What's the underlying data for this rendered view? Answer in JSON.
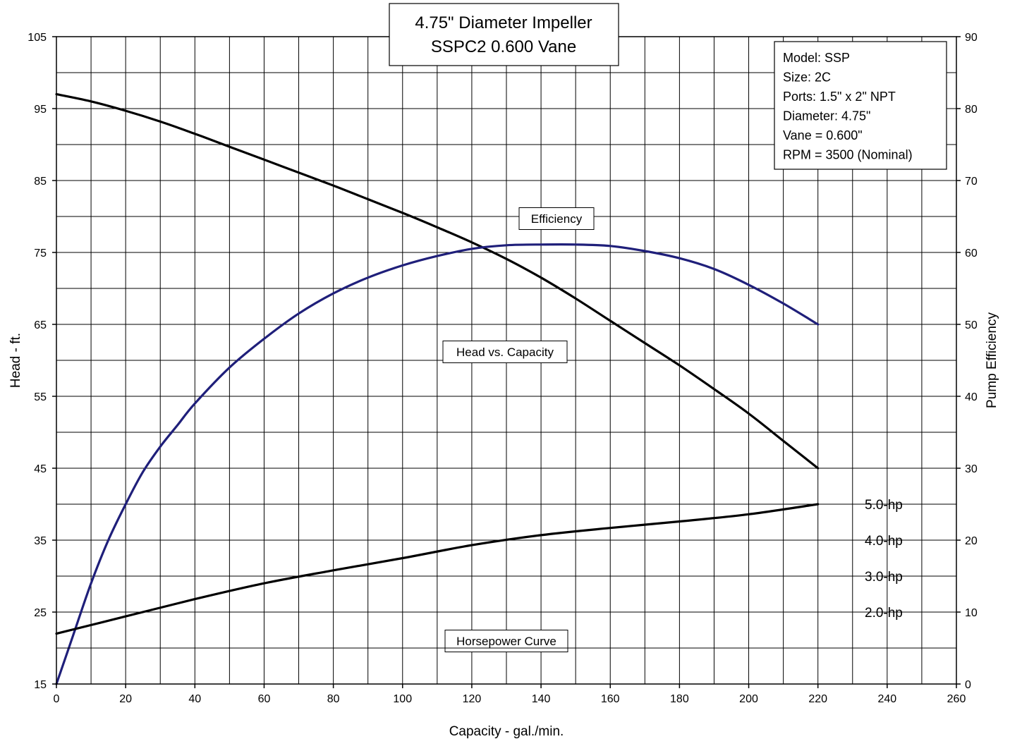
{
  "chart_data": {
    "type": "line",
    "title_lines": [
      "4.75\" Diameter Impeller",
      "SSPC2   0.600 Vane"
    ],
    "xlabel": "Capacity - gal./min.",
    "ylabel_left": "Head - ft.",
    "ylabel_right": "Pump Efficiency",
    "xlim": [
      0,
      260
    ],
    "ylim_left": [
      15,
      105
    ],
    "ylim_right": [
      0,
      90
    ],
    "x_ticks": [
      0,
      20,
      40,
      60,
      80,
      100,
      120,
      140,
      160,
      180,
      200,
      220,
      240,
      260
    ],
    "y_ticks_left": [
      15,
      25,
      35,
      45,
      55,
      65,
      75,
      85,
      95,
      105
    ],
    "y_ticks_right": [
      0,
      10,
      20,
      30,
      40,
      50,
      60,
      70,
      80,
      90
    ],
    "grid": true,
    "info_box": [
      "Model: SSP",
      "Size: 2C",
      "Ports: 1.5\" x 2\" NPT",
      "Diameter:  4.75\"",
      "Vane = 0.600\"",
      "RPM = 3500 (Nominal)"
    ],
    "annotations": {
      "efficiency": "Efficiency",
      "head": "Head vs. Capacity",
      "horsepower": "Horsepower Curve"
    },
    "hp_labels": [
      {
        "label": "5.0-hp",
        "head": 40
      },
      {
        "label": "4.0-hp",
        "head": 35
      },
      {
        "label": "3.0-hp",
        "head": 30
      },
      {
        "label": "2.0-hp",
        "head": 25
      }
    ],
    "series": [
      {
        "key": "head",
        "axis": "left",
        "color": "#000000",
        "x": [
          0,
          10,
          20,
          30,
          40,
          50,
          60,
          70,
          80,
          90,
          100,
          110,
          120,
          130,
          140,
          150,
          160,
          170,
          180,
          190,
          200,
          210,
          220
        ],
        "y": [
          97,
          96,
          94.7,
          93.2,
          91.5,
          89.7,
          87.9,
          86.1,
          84.3,
          82.4,
          80.5,
          78.5,
          76.4,
          74.1,
          71.5,
          68.6,
          65.5,
          62.4,
          59.3,
          56,
          52.6,
          48.8,
          45
        ]
      },
      {
        "key": "efficiency",
        "axis": "right",
        "color": "#1f1f7a",
        "x": [
          0,
          5,
          10,
          15,
          20,
          25,
          30,
          35,
          40,
          50,
          60,
          70,
          80,
          90,
          100,
          110,
          120,
          130,
          140,
          150,
          160,
          170,
          180,
          190,
          200,
          210,
          220
        ],
        "y": [
          0,
          7,
          14,
          20,
          25,
          29.5,
          33,
          36,
          39,
          44,
          48,
          51.5,
          54.3,
          56.5,
          58.2,
          59.5,
          60.5,
          61,
          61.1,
          61.1,
          60.9,
          60.2,
          59.2,
          57.7,
          55.5,
          52.9,
          50
        ]
      },
      {
        "key": "horsepower",
        "axis": "left",
        "color": "#000000",
        "x": [
          0,
          20,
          40,
          60,
          80,
          100,
          120,
          140,
          160,
          180,
          200,
          220
        ],
        "y": [
          22,
          24.4,
          26.8,
          29,
          30.8,
          32.5,
          34.3,
          35.7,
          36.7,
          37.6,
          38.6,
          40
        ]
      }
    ]
  }
}
